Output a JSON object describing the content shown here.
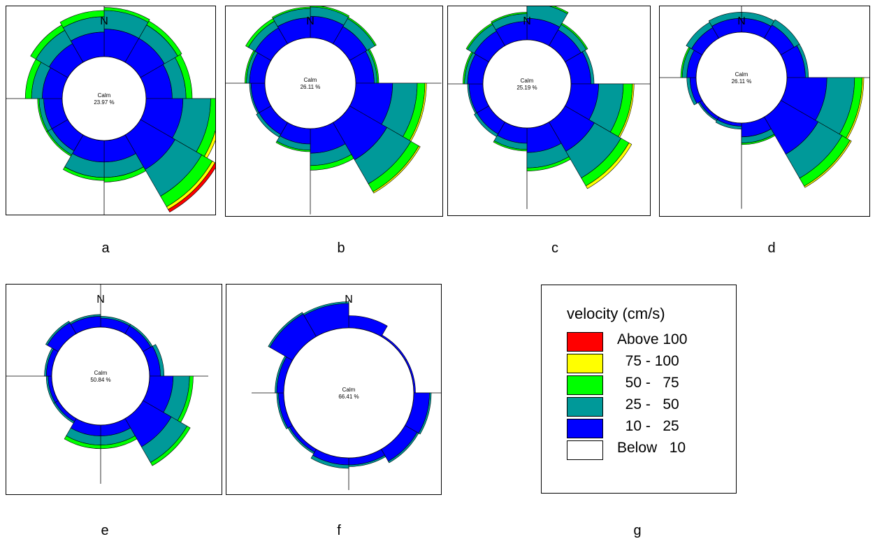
{
  "figure": {
    "panel_letters": [
      "a",
      "b",
      "c",
      "d",
      "e",
      "f",
      "g"
    ],
    "north_label": "N",
    "calm_label": "Calm"
  },
  "legend": {
    "title": "velocity (cm/s)",
    "items": [
      {
        "label": "Above 100",
        "color": "#ff0000"
      },
      {
        "label": "  75 - 100",
        "color": "#ffff00"
      },
      {
        "label": "  50 -   75",
        "color": "#00ff00"
      },
      {
        "label": "  25 -   50",
        "color": "#009999"
      },
      {
        "label": "  10 -   25",
        "color": "#0000ff"
      },
      {
        "label": "Below   10",
        "color": "#ffffff"
      }
    ]
  },
  "chart_data": [
    {
      "type": "rose",
      "panel": "a",
      "calm_text": "23.97 %",
      "calm": 23.97,
      "bins": [
        "10 - 25",
        "25 - 50",
        "50 - 75",
        "75 - 100",
        "Above 100"
      ],
      "sectors": [
        {
          "dir": 0,
          "cum": [
            18,
            30,
            32,
            32,
            32
          ]
        },
        {
          "dir": 30,
          "cum": [
            18,
            28,
            31,
            31,
            31
          ]
        },
        {
          "dir": 60,
          "cum": [
            17,
            26,
            30,
            30,
            30
          ]
        },
        {
          "dir": 90,
          "cum": [
            24,
            42,
            48,
            50,
            50
          ]
        },
        {
          "dir": 120,
          "cum": [
            26,
            46,
            54,
            56,
            58
          ]
        },
        {
          "dir": 150,
          "cum": [
            14,
            24,
            27,
            27,
            27
          ]
        },
        {
          "dir": 180,
          "cum": [
            14,
            24,
            26,
            26,
            26
          ]
        },
        {
          "dir": 210,
          "cum": [
            12,
            15,
            16,
            16,
            16
          ]
        },
        {
          "dir": 240,
          "cum": [
            12,
            15,
            16,
            16,
            16
          ]
        },
        {
          "dir": 270,
          "cum": [
            13,
            20,
            24,
            24,
            24
          ]
        },
        {
          "dir": 300,
          "cum": [
            14,
            24,
            28,
            28,
            28
          ]
        },
        {
          "dir": 330,
          "cum": [
            16,
            26,
            30,
            30,
            30
          ]
        }
      ]
    },
    {
      "type": "rose",
      "panel": "b",
      "calm_text": "26.11 %",
      "calm": 26.11,
      "bins": [
        "10 - 25",
        "25 - 50",
        "50 - 75",
        "75 - 100",
        "Above 100"
      ],
      "sectors": [
        {
          "dir": 0,
          "cum": [
            14,
            20,
            21,
            21,
            21
          ]
        },
        {
          "dir": 30,
          "cum": [
            13,
            19,
            20,
            20,
            20
          ]
        },
        {
          "dir": 60,
          "cum": [
            12,
            14,
            15,
            15,
            15
          ]
        },
        {
          "dir": 90,
          "cum": [
            24,
            40,
            45,
            46,
            46
          ]
        },
        {
          "dir": 120,
          "cum": [
            28,
            46,
            52,
            53,
            53
          ]
        },
        {
          "dir": 150,
          "cum": [
            16,
            24,
            27,
            27,
            27
          ]
        },
        {
          "dir": 180,
          "cum": [
            10,
            14,
            15,
            15,
            15
          ]
        },
        {
          "dir": 210,
          "cum": [
            9,
            11,
            11,
            11,
            11
          ]
        },
        {
          "dir": 240,
          "cum": [
            9,
            10,
            10,
            10,
            10
          ]
        },
        {
          "dir": 270,
          "cum": [
            10,
            12,
            13,
            13,
            13
          ]
        },
        {
          "dir": 300,
          "cum": [
            12,
            17,
            19,
            19,
            19
          ]
        },
        {
          "dir": 330,
          "cum": [
            13,
            19,
            20,
            20,
            20
          ]
        }
      ]
    },
    {
      "type": "rose",
      "panel": "c",
      "calm_text": "25.19 %",
      "calm": 25.19,
      "bins": [
        "10 - 25",
        "25 - 50",
        "50 - 75",
        "75 - 100",
        "Above 100"
      ],
      "sectors": [
        {
          "dir": 0,
          "cum": [
            14,
            24,
            25,
            25,
            25
          ]
        },
        {
          "dir": 30,
          "cum": [
            12,
            16,
            17,
            17,
            17
          ]
        },
        {
          "dir": 60,
          "cum": [
            13,
            15,
            15,
            15,
            15
          ]
        },
        {
          "dir": 90,
          "cum": [
            18,
            34,
            40,
            41,
            41
          ]
        },
        {
          "dir": 120,
          "cum": [
            22,
            42,
            48,
            50,
            50
          ]
        },
        {
          "dir": 150,
          "cum": [
            16,
            26,
            28,
            28,
            28
          ]
        },
        {
          "dir": 180,
          "cum": [
            10,
            14,
            15,
            15,
            15
          ]
        },
        {
          "dir": 210,
          "cum": [
            9,
            11,
            11,
            11,
            11
          ]
        },
        {
          "dir": 240,
          "cum": [
            9,
            10,
            10,
            10,
            10
          ]
        },
        {
          "dir": 270,
          "cum": [
            10,
            12,
            13,
            13,
            13
          ]
        },
        {
          "dir": 300,
          "cum": [
            11,
            16,
            17,
            17,
            17
          ]
        },
        {
          "dir": 330,
          "cum": [
            12,
            17,
            18,
            18,
            18
          ]
        }
      ]
    },
    {
      "type": "rose",
      "panel": "d",
      "calm_text": "26.11 %",
      "calm": 26.11,
      "bins": [
        "10 - 25",
        "25 - 50",
        "50 - 75",
        "75 - 100",
        "Above 100"
      ],
      "sectors": [
        {
          "dir": 0,
          "cum": [
            9,
            13,
            13,
            13,
            13
          ]
        },
        {
          "dir": 30,
          "cum": [
            10,
            14,
            14,
            14,
            14
          ]
        },
        {
          "dir": 60,
          "cum": [
            12,
            14,
            14,
            14,
            14
          ]
        },
        {
          "dir": 90,
          "cum": [
            26,
            44,
            49,
            50,
            50
          ]
        },
        {
          "dir": 120,
          "cum": [
            28,
            46,
            52,
            53,
            53
          ]
        },
        {
          "dir": 150,
          "cum": [
            9,
            13,
            14,
            14,
            14
          ]
        },
        {
          "dir": 180,
          "cum": [
            2,
            4,
            4,
            4,
            4
          ]
        },
        {
          "dir": 210,
          "cum": [
            2,
            3,
            3,
            3,
            3
          ]
        },
        {
          "dir": 240,
          "cum": [
            4,
            6,
            6,
            6,
            6
          ]
        },
        {
          "dir": 270,
          "cum": [
            6,
            9,
            10,
            10,
            10
          ]
        },
        {
          "dir": 300,
          "cum": [
            8,
            12,
            12,
            12,
            12
          ]
        },
        {
          "dir": 330,
          "cum": [
            9,
            13,
            13,
            13,
            13
          ]
        }
      ]
    },
    {
      "type": "rose",
      "panel": "e",
      "calm_text": "50.84 %",
      "calm": 50.84,
      "bins": [
        "10 - 25",
        "25 - 50",
        "50 - 75",
        "75 - 100",
        "Above 100"
      ],
      "sectors": [
        {
          "dir": 0,
          "cum": [
            5,
            6,
            6,
            6,
            6
          ]
        },
        {
          "dir": 30,
          "cum": [
            5,
            6,
            6,
            6,
            6
          ]
        },
        {
          "dir": 60,
          "cum": [
            6,
            8,
            8,
            8,
            8
          ]
        },
        {
          "dir": 90,
          "cum": [
            13,
            22,
            24,
            24,
            24
          ]
        },
        {
          "dir": 120,
          "cum": [
            18,
            28,
            30,
            30,
            30
          ]
        },
        {
          "dir": 150,
          "cum": [
            6,
            11,
            13,
            13,
            13
          ]
        },
        {
          "dir": 180,
          "cum": [
            6,
            11,
            13,
            13,
            13
          ]
        },
        {
          "dir": 210,
          "cum": [
            2,
            3,
            3,
            3,
            3
          ]
        },
        {
          "dir": 240,
          "cum": [
            2,
            3,
            3,
            3,
            3
          ]
        },
        {
          "dir": 270,
          "cum": [
            3,
            4,
            4,
            4,
            4
          ]
        },
        {
          "dir": 300,
          "cum": [
            7,
            8,
            8,
            8,
            8
          ]
        },
        {
          "dir": 330,
          "cum": [
            6,
            7,
            7,
            7,
            7
          ]
        }
      ]
    },
    {
      "type": "rose",
      "panel": "f",
      "calm_text": "66.41 %",
      "calm": 66.41,
      "bins": [
        "10 - 25",
        "25 - 50",
        "50 - 75",
        "75 - 100",
        "Above 100"
      ],
      "sectors": [
        {
          "dir": 0,
          "cum": [
            7,
            7,
            7,
            7,
            7
          ]
        },
        {
          "dir": 30,
          "cum": [
            1,
            1,
            1,
            1,
            1
          ]
        },
        {
          "dir": 60,
          "cum": [
            1,
            1,
            1,
            1,
            1
          ]
        },
        {
          "dir": 90,
          "cum": [
            9,
            10,
            10,
            10,
            10
          ]
        },
        {
          "dir": 120,
          "cum": [
            8,
            9,
            9,
            9,
            9
          ]
        },
        {
          "dir": 150,
          "cum": [
            4,
            5,
            5,
            5,
            5
          ]
        },
        {
          "dir": 180,
          "cum": [
            4,
            6,
            6,
            6,
            6
          ]
        },
        {
          "dir": 210,
          "cum": [
            2,
            3,
            3,
            3,
            3
          ]
        },
        {
          "dir": 240,
          "cum": [
            3,
            4,
            4,
            4,
            4
          ]
        },
        {
          "dir": 270,
          "cum": [
            4,
            5,
            5,
            5,
            5
          ]
        },
        {
          "dir": 300,
          "cum": [
            15,
            16,
            16,
            16,
            16
          ]
        },
        {
          "dir": 330,
          "cum": [
            14,
            15,
            15,
            15,
            15
          ]
        }
      ]
    }
  ]
}
